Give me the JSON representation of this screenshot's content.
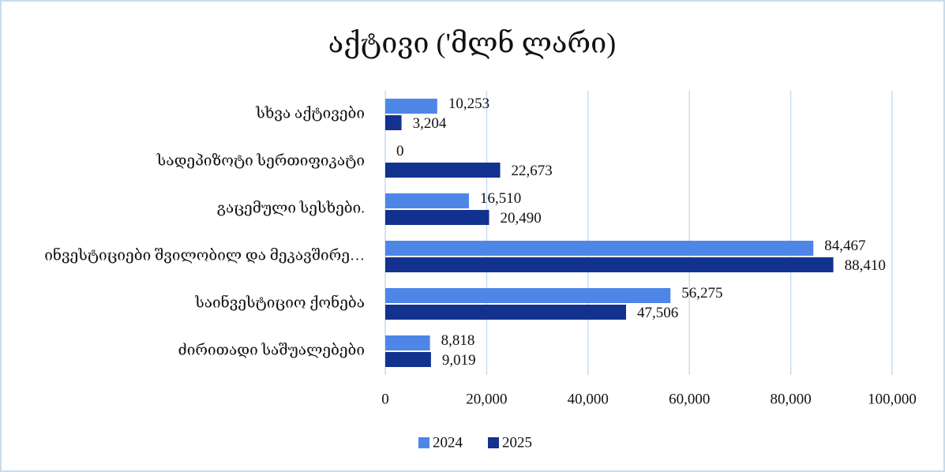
{
  "chart_data": {
    "type": "bar",
    "orientation": "horizontal",
    "title": "აქტივი ('მლნ ლარი)",
    "categories": [
      "სხვა აქტივები",
      "სადეპიზოტი სერთიფიკატი",
      "გაცემული სესხები.",
      "ინვესტიციები შვილობილ და მეკავშირე…",
      "საინვესტიციო ქონება",
      "ძირითადი საშუალებები"
    ],
    "series": [
      {
        "name": "2024",
        "color": "#4e86e8",
        "values": [
          10253,
          0,
          16510,
          84467,
          56275,
          8818
        ],
        "value_labels": [
          "10,253",
          "0",
          "16,510",
          "84,467",
          "56,275",
          "8,818"
        ]
      },
      {
        "name": "2025",
        "color": "#13318f",
        "values": [
          3204,
          22673,
          20490,
          88410,
          47506,
          9019
        ],
        "value_labels": [
          "3,204",
          "22,673",
          "20,490",
          "88,410",
          "47,506",
          "9,019"
        ]
      }
    ],
    "xlim": [
      0,
      100000
    ],
    "xticks": [
      0,
      {
        "value": 20000,
        "label": "20,000"
      },
      {
        "value": 40000,
        "label": "40,000"
      },
      {
        "value": 60000,
        "label": "60,000"
      },
      {
        "value": 80000,
        "label": "80,000"
      },
      {
        "value": 100000,
        "label": "100,000"
      }
    ],
    "grid": true,
    "legend": "bottom"
  }
}
